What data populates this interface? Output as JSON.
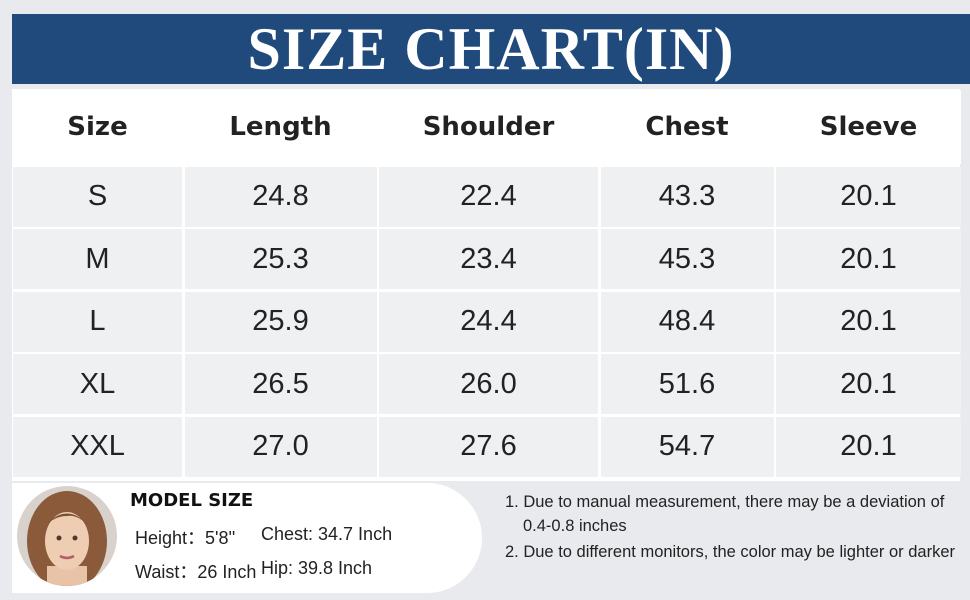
{
  "header": {
    "title": "SIZE CHART(IN)"
  },
  "table": {
    "columns": [
      "Size",
      "Length",
      "Shoulder",
      "Chest",
      "Sleeve"
    ],
    "rows": [
      [
        "S",
        "24.8",
        "22.4",
        "43.3",
        "20.1"
      ],
      [
        "M",
        "25.3",
        "23.4",
        "45.3",
        "20.1"
      ],
      [
        "L",
        "25.9",
        "24.4",
        "48.4",
        "20.1"
      ],
      [
        "XL",
        "26.5",
        "26.0",
        "51.6",
        "20.1"
      ],
      [
        "XXL",
        "27.0",
        "27.6",
        "54.7",
        "20.1"
      ]
    ]
  },
  "model": {
    "heading": "MODEL SIZE",
    "lines": [
      [
        "Height：5'8''",
        "Chest: 34.7 Inch"
      ],
      [
        "Waist：26 Inch",
        "Hip: 39.8 Inch"
      ]
    ]
  },
  "notes": [
    "1. Due to manual measurement, there may be a deviation of 0.4-0.8 inches",
    "2. Due to different monitors, the color may be lighter or darker"
  ]
}
